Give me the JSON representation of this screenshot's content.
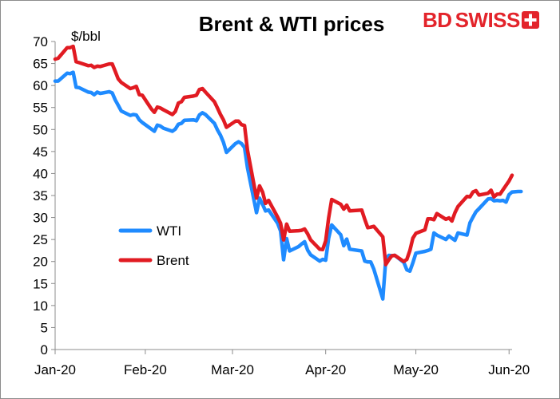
{
  "brand": {
    "bd": "BD",
    "swiss": "SWISS",
    "accent": "#e3242b"
  },
  "chart_data": {
    "type": "line",
    "title": "Brent & WTI prices",
    "unit_label": "$/bbl",
    "ylim": [
      0,
      70
    ],
    "yticks": [
      0,
      5,
      10,
      15,
      20,
      25,
      30,
      35,
      40,
      45,
      50,
      55,
      60,
      65,
      70
    ],
    "xlim": [
      "2020-01-02",
      "2020-06-02"
    ],
    "xticks": [
      {
        "date": "2020-01-01",
        "label": "Jan-20"
      },
      {
        "date": "2020-02-01",
        "label": "Feb-20"
      },
      {
        "date": "2020-03-01",
        "label": "Mar-20"
      },
      {
        "date": "2020-04-01",
        "label": "Apr-20"
      },
      {
        "date": "2020-05-01",
        "label": "May-20"
      },
      {
        "date": "2020-06-01",
        "label": "Jun-20"
      }
    ],
    "grid": false,
    "legend_position": "left-center",
    "series": [
      {
        "name": "WTI",
        "color": "#1f8bff",
        "points": [
          [
            "2020-01-02",
            61
          ],
          [
            "2020-01-03",
            61
          ],
          [
            "2020-01-06",
            62.8
          ],
          [
            "2020-01-07",
            62.7
          ],
          [
            "2020-01-08",
            63
          ],
          [
            "2020-01-09",
            59.6
          ],
          [
            "2020-01-10",
            59.5
          ],
          [
            "2020-01-13",
            58.5
          ],
          [
            "2020-01-14",
            58.4
          ],
          [
            "2020-01-15",
            57.9
          ],
          [
            "2020-01-16",
            58.5
          ],
          [
            "2020-01-17",
            58.2
          ],
          [
            "2020-01-20",
            58.6
          ],
          [
            "2020-01-21",
            58.3
          ],
          [
            "2020-01-22",
            56.7
          ],
          [
            "2020-01-23",
            55.5
          ],
          [
            "2020-01-24",
            54.2
          ],
          [
            "2020-01-27",
            53.2
          ],
          [
            "2020-01-28",
            53.4
          ],
          [
            "2020-01-29",
            53.3
          ],
          [
            "2020-01-30",
            52.2
          ],
          [
            "2020-01-31",
            51.6
          ],
          [
            "2020-02-03",
            50.1
          ],
          [
            "2020-02-04",
            49.6
          ],
          [
            "2020-02-05",
            51
          ],
          [
            "2020-02-06",
            50.8
          ],
          [
            "2020-02-07",
            50.3
          ],
          [
            "2020-02-10",
            49.6
          ],
          [
            "2020-02-11",
            50.1
          ],
          [
            "2020-02-12",
            51.2
          ],
          [
            "2020-02-13",
            51.4
          ],
          [
            "2020-02-14",
            52.1
          ],
          [
            "2020-02-17",
            52.2
          ],
          [
            "2020-02-18",
            52
          ],
          [
            "2020-02-19",
            53.3
          ],
          [
            "2020-02-20",
            53.8
          ],
          [
            "2020-02-21",
            53.4
          ],
          [
            "2020-02-24",
            51.4
          ],
          [
            "2020-02-25",
            49.9
          ],
          [
            "2020-02-26",
            48.7
          ],
          [
            "2020-02-27",
            47.1
          ],
          [
            "2020-02-28",
            44.8
          ],
          [
            "2020-03-02",
            46.8
          ],
          [
            "2020-03-03",
            47.2
          ],
          [
            "2020-03-04",
            46.8
          ],
          [
            "2020-03-05",
            45.9
          ],
          [
            "2020-03-06",
            41.3
          ],
          [
            "2020-03-09",
            31.1
          ],
          [
            "2020-03-10",
            34.4
          ],
          [
            "2020-03-11",
            32.98
          ],
          [
            "2020-03-12",
            31.5
          ],
          [
            "2020-03-13",
            31.7
          ],
          [
            "2020-03-16",
            28.7
          ],
          [
            "2020-03-17",
            26.95
          ],
          [
            "2020-03-18",
            20.4
          ],
          [
            "2020-03-19",
            25.2
          ],
          [
            "2020-03-20",
            22.4
          ],
          [
            "2020-03-23",
            23.4
          ],
          [
            "2020-03-24",
            24.0
          ],
          [
            "2020-03-25",
            24.5
          ],
          [
            "2020-03-26",
            22.6
          ],
          [
            "2020-03-27",
            21.5
          ],
          [
            "2020-03-30",
            20.1
          ],
          [
            "2020-03-31",
            20.5
          ],
          [
            "2020-04-01",
            20.3
          ],
          [
            "2020-04-02",
            25.3
          ],
          [
            "2020-04-03",
            28.3
          ],
          [
            "2020-04-06",
            26.1
          ],
          [
            "2020-04-07",
            23.6
          ],
          [
            "2020-04-08",
            25.1
          ],
          [
            "2020-04-09",
            22.8
          ],
          [
            "2020-04-13",
            22.4
          ],
          [
            "2020-04-14",
            20.1
          ],
          [
            "2020-04-15",
            19.9
          ],
          [
            "2020-04-16",
            19.9
          ],
          [
            "2020-04-17",
            18.3
          ],
          [
            "2020-04-20",
            11.5
          ],
          [
            "2020-04-21",
            20.5
          ],
          [
            "2020-04-22",
            21.4
          ],
          [
            "2020-04-23",
            21.3
          ],
          [
            "2020-04-24",
            21.4
          ],
          [
            "2020-04-27",
            19.8
          ],
          [
            "2020-04-28",
            18.1
          ],
          [
            "2020-04-29",
            17.8
          ],
          [
            "2020-04-30",
            19.7
          ],
          [
            "2020-05-01",
            21.9
          ],
          [
            "2020-05-04",
            22.3
          ],
          [
            "2020-05-05",
            22.5
          ],
          [
            "2020-05-06",
            22.8
          ],
          [
            "2020-05-07",
            26.5
          ],
          [
            "2020-05-08",
            26
          ],
          [
            "2020-05-11",
            25
          ],
          [
            "2020-05-12",
            25.8
          ],
          [
            "2020-05-13",
            25.3
          ],
          [
            "2020-05-14",
            24.8
          ],
          [
            "2020-05-15",
            26.5
          ],
          [
            "2020-05-18",
            26
          ],
          [
            "2020-05-19",
            28.8
          ],
          [
            "2020-05-20",
            30.1
          ],
          [
            "2020-05-21",
            31.3
          ],
          [
            "2020-05-22",
            32
          ],
          [
            "2020-05-25",
            34.2
          ],
          [
            "2020-05-26",
            34.3
          ],
          [
            "2020-05-27",
            33.8
          ],
          [
            "2020-05-28",
            33.9
          ],
          [
            "2020-05-29",
            33.8
          ],
          [
            "2020-05-30",
            33.9
          ],
          [
            "2020-05-31",
            33.5
          ],
          [
            "2020-06-01",
            35.2
          ],
          [
            "2020-06-02",
            35.8
          ],
          [
            "2020-06-04",
            35.9
          ],
          [
            "2020-06-05",
            35.9
          ]
        ]
      },
      {
        "name": "Brent",
        "color": "#e11b22",
        "points": [
          [
            "2020-01-02",
            66
          ],
          [
            "2020-01-03",
            66.2
          ],
          [
            "2020-01-06",
            68.6
          ],
          [
            "2020-01-07",
            68.6
          ],
          [
            "2020-01-08",
            68.9
          ],
          [
            "2020-01-09",
            65.4
          ],
          [
            "2020-01-10",
            65.2
          ],
          [
            "2020-01-13",
            64.5
          ],
          [
            "2020-01-14",
            64.6
          ],
          [
            "2020-01-15",
            64.1
          ],
          [
            "2020-01-16",
            64.4
          ],
          [
            "2020-01-17",
            64.3
          ],
          [
            "2020-01-20",
            64.9
          ],
          [
            "2020-01-21",
            64.9
          ],
          [
            "2020-01-22",
            63.2
          ],
          [
            "2020-01-23",
            61.5
          ],
          [
            "2020-01-24",
            60.7
          ],
          [
            "2020-01-27",
            59.3
          ],
          [
            "2020-01-28",
            59.5
          ],
          [
            "2020-01-29",
            59.8
          ],
          [
            "2020-01-30",
            57.9
          ],
          [
            "2020-01-31",
            57.8
          ],
          [
            "2020-02-03",
            54.7
          ],
          [
            "2020-02-04",
            53.9
          ],
          [
            "2020-02-05",
            55.1
          ],
          [
            "2020-02-06",
            54.9
          ],
          [
            "2020-02-07",
            54.5
          ],
          [
            "2020-02-10",
            53.4
          ],
          [
            "2020-02-11",
            54.1
          ],
          [
            "2020-02-12",
            56
          ],
          [
            "2020-02-13",
            56.3
          ],
          [
            "2020-02-14",
            57.3
          ],
          [
            "2020-02-17",
            57.6
          ],
          [
            "2020-02-18",
            57.8
          ],
          [
            "2020-02-19",
            59.1
          ],
          [
            "2020-02-20",
            59.3
          ],
          [
            "2020-02-21",
            58.5
          ],
          [
            "2020-02-24",
            56.3
          ],
          [
            "2020-02-25",
            54.9
          ],
          [
            "2020-02-26",
            53.4
          ],
          [
            "2020-02-27",
            52.2
          ],
          [
            "2020-02-28",
            50.5
          ],
          [
            "2020-03-02",
            51.9
          ],
          [
            "2020-03-03",
            51.9
          ],
          [
            "2020-03-04",
            51.1
          ],
          [
            "2020-03-05",
            50.9
          ],
          [
            "2020-03-06",
            45.3
          ],
          [
            "2020-03-09",
            34.4
          ],
          [
            "2020-03-10",
            37.2
          ],
          [
            "2020-03-11",
            35.8
          ],
          [
            "2020-03-12",
            33.2
          ],
          [
            "2020-03-13",
            33.9
          ],
          [
            "2020-03-16",
            30.1
          ],
          [
            "2020-03-17",
            28.7
          ],
          [
            "2020-03-18",
            24.9
          ],
          [
            "2020-03-19",
            28.5
          ],
          [
            "2020-03-20",
            26.9
          ],
          [
            "2020-03-23",
            27
          ],
          [
            "2020-03-24",
            27.1
          ],
          [
            "2020-03-25",
            27.4
          ],
          [
            "2020-03-26",
            26.3
          ],
          [
            "2020-03-27",
            24.9
          ],
          [
            "2020-03-30",
            22.8
          ],
          [
            "2020-03-31",
            22.7
          ],
          [
            "2020-04-01",
            24.7
          ],
          [
            "2020-04-02",
            29.9
          ],
          [
            "2020-04-03",
            34.1
          ],
          [
            "2020-04-06",
            33
          ],
          [
            "2020-04-07",
            31.9
          ],
          [
            "2020-04-08",
            32.8
          ],
          [
            "2020-04-09",
            31.5
          ],
          [
            "2020-04-13",
            31.7
          ],
          [
            "2020-04-14",
            29.6
          ],
          [
            "2020-04-15",
            27.7
          ],
          [
            "2020-04-16",
            27.8
          ],
          [
            "2020-04-17",
            28
          ],
          [
            "2020-04-20",
            25.6
          ],
          [
            "2020-04-21",
            19.3
          ],
          [
            "2020-04-22",
            20.4
          ],
          [
            "2020-04-23",
            21.3
          ],
          [
            "2020-04-24",
            21.4
          ],
          [
            "2020-04-27",
            20
          ],
          [
            "2020-04-28",
            20.5
          ],
          [
            "2020-04-29",
            22.5
          ],
          [
            "2020-04-30",
            25.3
          ],
          [
            "2020-05-01",
            26.4
          ],
          [
            "2020-05-04",
            27.2
          ],
          [
            "2020-05-05",
            29.7
          ],
          [
            "2020-05-06",
            29.7
          ],
          [
            "2020-05-07",
            29.5
          ],
          [
            "2020-05-08",
            30.9
          ],
          [
            "2020-05-11",
            29.6
          ],
          [
            "2020-05-12",
            29.9
          ],
          [
            "2020-05-13",
            29.2
          ],
          [
            "2020-05-14",
            31.1
          ],
          [
            "2020-05-15",
            32.5
          ],
          [
            "2020-05-18",
            34.8
          ],
          [
            "2020-05-19",
            34.7
          ],
          [
            "2020-05-20",
            35.8
          ],
          [
            "2020-05-21",
            36.1
          ],
          [
            "2020-05-22",
            35.1
          ],
          [
            "2020-05-25",
            35.5
          ],
          [
            "2020-05-26",
            36.2
          ],
          [
            "2020-05-27",
            34.7
          ],
          [
            "2020-05-28",
            35.3
          ],
          [
            "2020-05-29",
            35.3
          ],
          [
            "2020-06-01",
            38.3
          ],
          [
            "2020-06-02",
            39.6
          ]
        ]
      }
    ]
  }
}
